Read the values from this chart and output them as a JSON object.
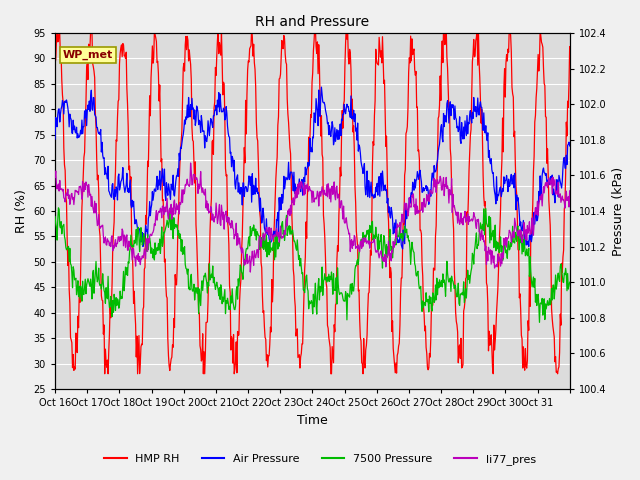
{
  "title": "RH and Pressure",
  "xlabel": "Time",
  "ylabel_left": "RH (%)",
  "ylabel_right": "Pressure (kPa)",
  "ylim_left": [
    25,
    95
  ],
  "ylim_right": [
    100.4,
    102.4
  ],
  "xtick_labels": [
    "Oct 16",
    "Oct 17",
    "Oct 18",
    "Oct 19",
    "Oct 20",
    "Oct 21",
    "Oct 22",
    "Oct 23",
    "Oct 24",
    "Oct 25",
    "Oct 26",
    "Oct 27",
    "Oct 28",
    "Oct 29",
    "Oct 30",
    "Oct 31",
    ""
  ],
  "yticks_left": [
    25,
    30,
    35,
    40,
    45,
    50,
    55,
    60,
    65,
    70,
    75,
    80,
    85,
    90,
    95
  ],
  "yticks_right": [
    100.4,
    100.6,
    100.8,
    101.0,
    101.2,
    101.4,
    101.6,
    101.8,
    102.0,
    102.2,
    102.4
  ],
  "colors": {
    "HMP_RH": "#FF0000",
    "Air_Pressure": "#0000FF",
    "Pressure_7500": "#00BB00",
    "li77_pres": "#BB00BB"
  },
  "legend_labels": [
    "HMP RH",
    "Air Pressure",
    "7500 Pressure",
    "li77_pres"
  ],
  "annotation_text": "WP_met",
  "annotation_box_facecolor": "#FFFF99",
  "annotation_box_edgecolor": "#999900",
  "annotation_text_color": "#880000",
  "fig_facecolor": "#F0F0F0",
  "axes_facecolor": "#DCDCDC",
  "grid_color": "#FFFFFF",
  "title_fontsize": 10,
  "label_fontsize": 9,
  "tick_fontsize": 7,
  "legend_fontsize": 8,
  "linewidth": 0.9
}
